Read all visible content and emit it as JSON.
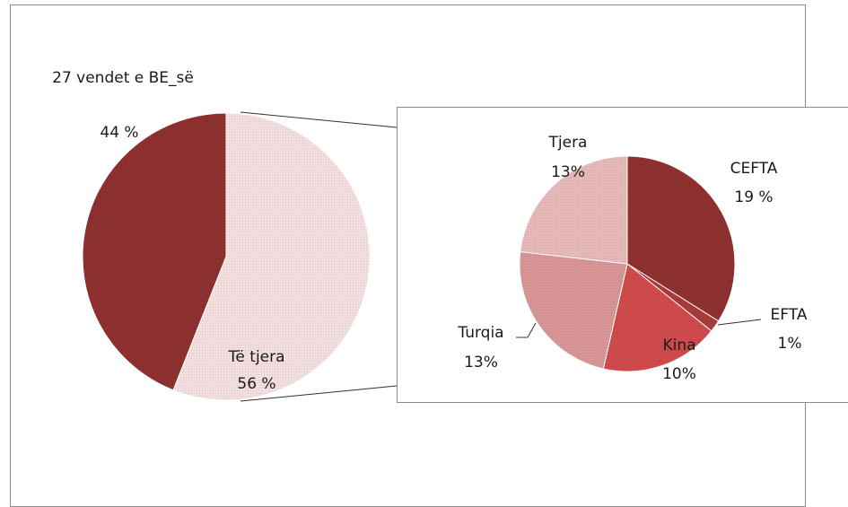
{
  "chart_data": [
    {
      "type": "pie",
      "title": "",
      "labels": [
        "27 vendet e BE_së",
        "Të tjera"
      ],
      "values": [
        44,
        56
      ],
      "value_labels": [
        "44 %",
        "56 %"
      ],
      "colors": [
        "#8e3030",
        "#f2dede"
      ]
    },
    {
      "type": "pie",
      "title": "",
      "labels": [
        "CEFTA",
        "EFTA",
        "Kina",
        "Turqia",
        "Tjera"
      ],
      "values": [
        19,
        1,
        10,
        13,
        13
      ],
      "value_labels": [
        "19 %",
        "1%",
        "10%",
        "13%",
        "13%"
      ],
      "colors": [
        "#8e3030",
        "#a83a3a",
        "#cf4a4a",
        "#d79595",
        "#e6b8b8"
      ]
    }
  ]
}
